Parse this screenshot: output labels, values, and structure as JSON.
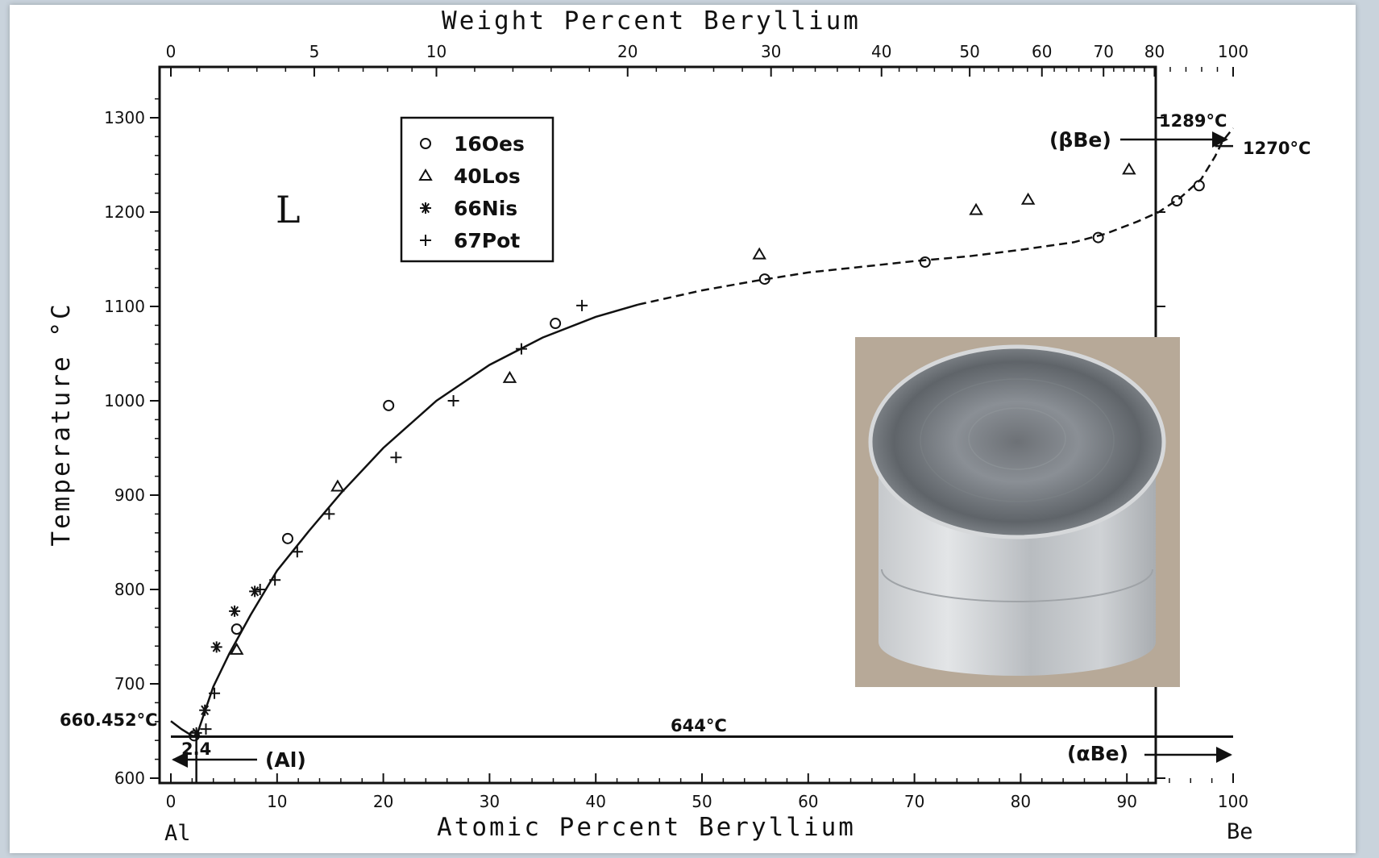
{
  "chart_data": {
    "type": "scatter",
    "title": "",
    "xlabel": "Atomic Percent Beryllium",
    "x2label": "Weight Percent Beryllium",
    "ylabel": "Temperature °C",
    "xlim": [
      0,
      100
    ],
    "ylim": [
      600,
      1350
    ],
    "x_ticks": [
      0,
      10,
      20,
      30,
      40,
      50,
      60,
      70,
      80,
      90,
      100
    ],
    "y_ticks": [
      600,
      700,
      800,
      900,
      1000,
      1100,
      1200,
      1300
    ],
    "top_axis": {
      "weight_ticks": [
        0,
        5,
        10,
        20,
        30,
        40,
        50,
        60,
        70,
        80,
        100
      ],
      "atomic_positions": [
        0,
        13.5,
        25,
        43,
        56.5,
        66.9,
        75.2,
        82,
        87.8,
        92.6,
        100
      ]
    },
    "x_end_labels": {
      "left": "Al",
      "right": "Be"
    },
    "legend": [
      {
        "marker": "circle",
        "label": "16Oes"
      },
      {
        "marker": "triangle",
        "label": "40Los"
      },
      {
        "marker": "asterisk",
        "label": "66Nis"
      },
      {
        "marker": "plus",
        "label": "67Pot"
      }
    ],
    "series": [
      {
        "name": "16Oes",
        "marker": "circle",
        "points": [
          [
            2.2,
            645
          ],
          [
            6.2,
            758
          ],
          [
            11,
            854
          ],
          [
            20.5,
            995
          ],
          [
            36.2,
            1082
          ],
          [
            55.9,
            1129
          ],
          [
            71,
            1147
          ],
          [
            87.3,
            1173
          ],
          [
            94.7,
            1212
          ],
          [
            96.8,
            1228
          ]
        ]
      },
      {
        "name": "40Los",
        "marker": "triangle",
        "points": [
          [
            6.2,
            736
          ],
          [
            15.7,
            909
          ],
          [
            31.9,
            1024
          ],
          [
            55.4,
            1155
          ],
          [
            75.8,
            1202
          ],
          [
            80.7,
            1213
          ],
          [
            90.2,
            1245
          ]
        ]
      },
      {
        "name": "66Nis",
        "marker": "asterisk",
        "points": [
          [
            2.4,
            648
          ],
          [
            3.2,
            672
          ],
          [
            4.3,
            739
          ],
          [
            6,
            777
          ],
          [
            7.9,
            798
          ]
        ]
      },
      {
        "name": "67Pot",
        "marker": "plus",
        "points": [
          [
            3.3,
            652
          ],
          [
            4.1,
            690
          ],
          [
            8.4,
            800
          ],
          [
            9.8,
            810
          ],
          [
            11.9,
            840
          ],
          [
            14.9,
            880
          ],
          [
            21.2,
            940
          ],
          [
            26.6,
            1000
          ],
          [
            33,
            1055
          ],
          [
            38.7,
            1101
          ]
        ]
      }
    ],
    "liquidus_solid": [
      [
        2.4,
        644
      ],
      [
        3,
        664
      ],
      [
        4,
        697
      ],
      [
        5.5,
        732
      ],
      [
        7.5,
        773
      ],
      [
        10,
        820
      ],
      [
        13,
        862
      ],
      [
        16,
        902
      ],
      [
        20,
        950
      ],
      [
        25,
        1000
      ],
      [
        30,
        1038
      ],
      [
        35,
        1067
      ],
      [
        40,
        1089
      ],
      [
        44,
        1102
      ]
    ],
    "liquidus_dashed": [
      [
        44,
        1102
      ],
      [
        50,
        1117
      ],
      [
        55,
        1127
      ],
      [
        60,
        1136
      ],
      [
        65,
        1142
      ],
      [
        70,
        1148
      ],
      [
        75,
        1153
      ],
      [
        80,
        1160
      ],
      [
        85,
        1168
      ],
      [
        88,
        1177
      ],
      [
        91,
        1190
      ],
      [
        93,
        1200
      ],
      [
        95,
        1215
      ],
      [
        97,
        1235
      ],
      [
        98.3,
        1259
      ],
      [
        99,
        1275
      ],
      [
        100,
        1289
      ]
    ],
    "al_melting_curve": [
      [
        0,
        660.452
      ],
      [
        1,
        652
      ],
      [
        2,
        645
      ],
      [
        2.4,
        644
      ]
    ],
    "eutectic_line": {
      "temperature": 644,
      "x_from": 0,
      "x_to": 100
    },
    "al_solvus": {
      "x": 2.4
    },
    "annotations": {
      "L": "L",
      "eutectic_temp": "644°C",
      "al_melt": "660.452°C",
      "be_melt": "1289°C",
      "transition": "1270°C",
      "al_solubility": "2.4",
      "beta_be": "(βBe)",
      "alpha_be": "(αBe)",
      "al_phase": "(Al)"
    },
    "grid": false
  },
  "inset_photo": {
    "subject": "machined aluminum-beryllium cylinder",
    "icon": "metal-cylinder-photo"
  },
  "colors": {
    "background": "#c9d3dc",
    "plot": "#ffffff",
    "ink": "#111111"
  }
}
